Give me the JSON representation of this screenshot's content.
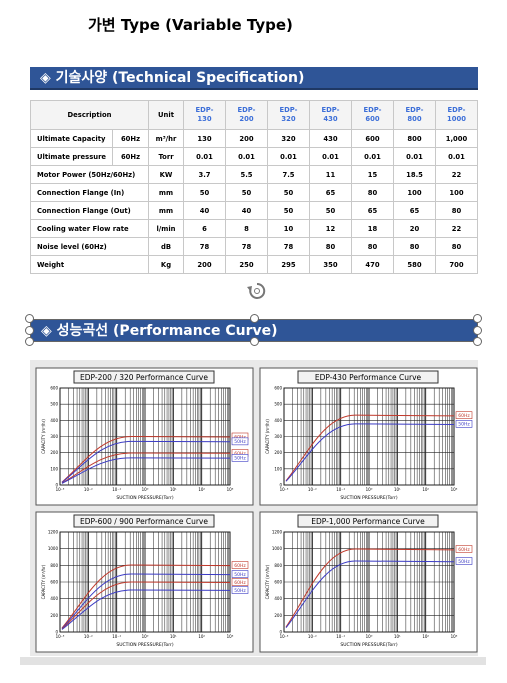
{
  "header": {
    "title": "가변 Type  (Variable Type)"
  },
  "sections": [
    {
      "title": "◈ 기술사양 (Technical Specification)"
    },
    {
      "title": "◈ 성능곡선 (Performance Curve)"
    }
  ],
  "table": {
    "description": "Description",
    "unit": "Unit",
    "models": [
      "EDP-\n130",
      "EDP-\n200",
      "EDP-\n320",
      "EDP-\n430",
      "EDP-\n600",
      "EDP-\n800",
      "EDP-\n1000"
    ],
    "rows": [
      {
        "label": "Ultimate Capacity",
        "hz": "60Hz",
        "unit": "m³/hr",
        "values": [
          130,
          200,
          320,
          430,
          600,
          800,
          "1,000"
        ]
      },
      {
        "label": "Ultimate pressure",
        "hz": "60Hz",
        "unit": "Torr",
        "values": [
          0.01,
          0.01,
          0.01,
          0.01,
          0.01,
          0.01,
          0.01
        ]
      },
      {
        "label": "Motor Power (50Hz/60Hz)",
        "unit": "KW",
        "values": [
          3.7,
          5.5,
          7.5,
          11,
          15,
          18.5,
          22
        ]
      },
      {
        "label": "Connection Flange (In)",
        "unit": "mm",
        "values": [
          50,
          50,
          50,
          65,
          80,
          100,
          100
        ]
      },
      {
        "label": "Connection Flange (Out)",
        "unit": "mm",
        "values": [
          40,
          40,
          50,
          50,
          65,
          65,
          80
        ]
      },
      {
        "label": "Cooling water Flow rate",
        "unit": "l/min",
        "values": [
          6,
          8,
          10,
          12,
          18,
          20,
          22
        ]
      },
      {
        "label": "Noise level (60Hz)",
        "unit": "dB",
        "values": [
          78,
          78,
          78,
          80,
          80,
          80,
          80
        ]
      },
      {
        "label": "Weight",
        "unit": "Kg",
        "values": [
          200,
          250,
          295,
          350,
          470,
          580,
          700
        ]
      }
    ]
  },
  "charts": [
    {
      "title": "EDP-200 / 320 Performance Curve",
      "yticks": [
        0,
        100,
        200,
        300,
        400,
        500,
        600
      ],
      "xticks": [
        "10⁻³",
        "10⁻²",
        "10⁻¹",
        "10⁰",
        "10¹",
        "10²",
        "10³"
      ],
      "x_label": "SUCTION PRESSURE(Torr)",
      "y_label": "CAPACITY (m³/hr)",
      "legend": [
        "60Hz",
        "50Hz",
        "60Hz",
        "50Hz"
      ]
    },
    {
      "title": "EDP-430 Performance Curve",
      "yticks": [
        0,
        100,
        200,
        300,
        400,
        500,
        600
      ],
      "xticks": [
        "10⁻³",
        "10⁻²",
        "10⁻¹",
        "10⁰",
        "10¹",
        "10²",
        "10³"
      ],
      "x_label": "SUCTION PRESSURE(Torr)",
      "y_label": "CAPACITY (m³/hr)",
      "legend": [
        "60Hz",
        "50Hz"
      ]
    },
    {
      "title": "EDP-600 / 900 Performance Curve",
      "yticks": [
        0,
        200,
        400,
        600,
        800,
        1000,
        1200
      ],
      "xticks": [
        "10⁻³",
        "10⁻²",
        "10⁻¹",
        "10⁰",
        "10¹",
        "10²",
        "10³"
      ],
      "x_label": "SUCTION PRESSURE(Torr)",
      "y_label": "CAPACITY (m³/hr)",
      "legend": [
        "60Hz",
        "50Hz",
        "60Hz",
        "50Hz"
      ]
    },
    {
      "title": "EDP-1,000 Performance Curve",
      "yticks": [
        0,
        200,
        400,
        600,
        800,
        1000,
        1200
      ],
      "xticks": [
        "10⁻³",
        "10⁻²",
        "10⁻¹",
        "10⁰",
        "10¹",
        "10²",
        "10³"
      ],
      "x_label": "SUCTION PRESSURE(Torr)",
      "y_label": "CAPACITY (m³/hr)",
      "legend": [
        "60Hz",
        "50Hz"
      ]
    }
  ]
}
